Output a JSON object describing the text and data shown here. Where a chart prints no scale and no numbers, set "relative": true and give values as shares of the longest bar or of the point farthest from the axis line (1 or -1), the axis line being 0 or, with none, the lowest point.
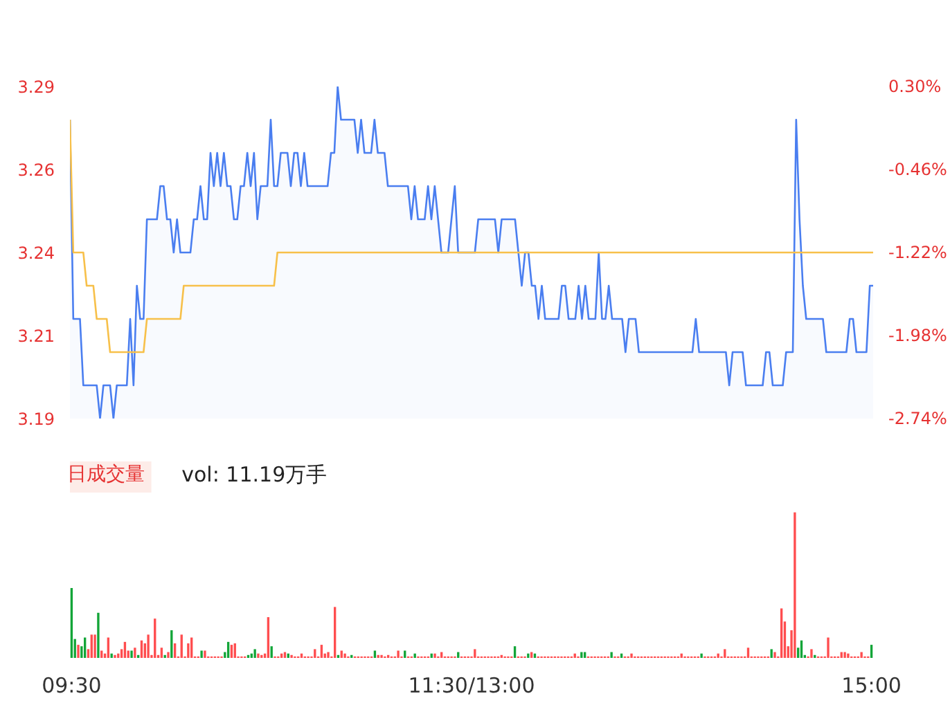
{
  "chart_data": [
    {
      "type": "line",
      "tick_labels": "y",
      "ylim": [
        3.19,
        3.29
      ],
      "categories": [
        null,
        null,
        null,
        null,
        null,
        null,
        null,
        null,
        null,
        null,
        null,
        null,
        null,
        null,
        null,
        null,
        null,
        null,
        null,
        null,
        null,
        null,
        null,
        null,
        null,
        null,
        null,
        null,
        null,
        null,
        null,
        null,
        null,
        null,
        null,
        null,
        null,
        null,
        null,
        null,
        null,
        null,
        null,
        null,
        null,
        null,
        null,
        null,
        null,
        null,
        null,
        null,
        null,
        null,
        null,
        null,
        null,
        null,
        null,
        null,
        null,
        null,
        null,
        null,
        null,
        null,
        null,
        null,
        null,
        null,
        null,
        null,
        null,
        null,
        null,
        null,
        null,
        null,
        null,
        null,
        null,
        null,
        null,
        null,
        null,
        null,
        null,
        null,
        null,
        null,
        null,
        null,
        null,
        null,
        null,
        null,
        null,
        null,
        null,
        null,
        null,
        null,
        null,
        null,
        null,
        null,
        null,
        null,
        null,
        null,
        null,
        null,
        null,
        null,
        null,
        null,
        null,
        null,
        null,
        null,
        null,
        null,
        null,
        null,
        null,
        null,
        null,
        null,
        null,
        null,
        null,
        null,
        null,
        null,
        null,
        null,
        null,
        null,
        null,
        null,
        null,
        null,
        null,
        null,
        null,
        null,
        null,
        null,
        null,
        null,
        null,
        null,
        null,
        null,
        null,
        null,
        null,
        null,
        null,
        null,
        null,
        null,
        null,
        null,
        null,
        null,
        null,
        null,
        null,
        null,
        null,
        null,
        null,
        null,
        null,
        null,
        null,
        null,
        null,
        null,
        null,
        null,
        null,
        null,
        null,
        null,
        null,
        null,
        null,
        null,
        null,
        null,
        null,
        null,
        null,
        null,
        null,
        null,
        null,
        null,
        null,
        null,
        null,
        null,
        null,
        null,
        null,
        null,
        null,
        null,
        null,
        null,
        null,
        null,
        null,
        null,
        null,
        null,
        null,
        null,
        null,
        null,
        null,
        null,
        null,
        null,
        null,
        null,
        null,
        null,
        null,
        null,
        null,
        null,
        null,
        null,
        null,
        null,
        null,
        null,
        null
      ],
      "yticks": [
        {
          "value": 3.29,
          "label": "3.29"
        },
        {
          "value": 3.265,
          "label": "3.26"
        },
        {
          "value": 3.24,
          "label": "3.24"
        },
        {
          "value": 3.215,
          "label": "3.21"
        },
        {
          "value": 3.19,
          "label": "3.19"
        }
      ],
      "y2lim": [
        -2.74,
        0.3
      ],
      "y2ticks": [
        {
          "value": 0.3,
          "label": "0.30%"
        },
        {
          "value": -0.46,
          "label": "-0.46%"
        },
        {
          "value": -1.22,
          "label": "-1.22%"
        },
        {
          "value": -1.98,
          "label": "-1.98%"
        },
        {
          "value": -2.74,
          "label": "-2.74%"
        }
      ],
      "series": [
        {
          "type": "area",
          "color": "#4a7ef0",
          "values": [
            3.28,
            3.22,
            3.22,
            3.22,
            3.2,
            3.2,
            3.2,
            3.2,
            3.2,
            3.19,
            3.2,
            3.2,
            3.2,
            3.19,
            3.2,
            3.2,
            3.2,
            3.2,
            3.22,
            3.2,
            3.23,
            3.22,
            3.22,
            3.25,
            3.25,
            3.25,
            3.25,
            3.26,
            3.26,
            3.25,
            3.25,
            3.24,
            3.25,
            3.24,
            3.24,
            3.24,
            3.24,
            3.25,
            3.25,
            3.26,
            3.25,
            3.25,
            3.27,
            3.26,
            3.27,
            3.26,
            3.27,
            3.26,
            3.26,
            3.25,
            3.25,
            3.26,
            3.26,
            3.27,
            3.26,
            3.27,
            3.25,
            3.26,
            3.26,
            3.26,
            3.28,
            3.26,
            3.26,
            3.27,
            3.27,
            3.27,
            3.26,
            3.27,
            3.27,
            3.26,
            3.27,
            3.26,
            3.26,
            3.26,
            3.26,
            3.26,
            3.26,
            3.26,
            3.27,
            3.27,
            3.29,
            3.28,
            3.28,
            3.28,
            3.28,
            3.28,
            3.27,
            3.28,
            3.27,
            3.27,
            3.27,
            3.28,
            3.27,
            3.27,
            3.27,
            3.26,
            3.26,
            3.26,
            3.26,
            3.26,
            3.26,
            3.26,
            3.25,
            3.26,
            3.25,
            3.25,
            3.25,
            3.26,
            3.25,
            3.26,
            3.25,
            3.24,
            3.24,
            3.24,
            3.25,
            3.26,
            3.24,
            3.24,
            3.24,
            3.24,
            3.24,
            3.24,
            3.25,
            3.25,
            3.25,
            3.25,
            3.25,
            3.25,
            3.24,
            3.25,
            3.25,
            3.25,
            3.25,
            3.25,
            3.24,
            3.23,
            3.24,
            3.24,
            3.23,
            3.23,
            3.22,
            3.23,
            3.22,
            3.22,
            3.22,
            3.22,
            3.22,
            3.23,
            3.23,
            3.22,
            3.22,
            3.22,
            3.23,
            3.22,
            3.23,
            3.22,
            3.22,
            3.22,
            3.24,
            3.22,
            3.22,
            3.23,
            3.22,
            3.22,
            3.22,
            3.22,
            3.21,
            3.22,
            3.22,
            3.22,
            3.21,
            3.21,
            3.21,
            3.21,
            3.21,
            3.21,
            3.21,
            3.21,
            3.21,
            3.21,
            3.21,
            3.21,
            3.21,
            3.21,
            3.21,
            3.21,
            3.21,
            3.22,
            3.21,
            3.21,
            3.21,
            3.21,
            3.21,
            3.21,
            3.21,
            3.21,
            3.21,
            3.2,
            3.21,
            3.21,
            3.21,
            3.21,
            3.2,
            3.2,
            3.2,
            3.2,
            3.2,
            3.2,
            3.21,
            3.21,
            3.2,
            3.2,
            3.2,
            3.2,
            3.21,
            3.21,
            3.21,
            3.28,
            3.25,
            3.23,
            3.22,
            3.22,
            3.22,
            3.22,
            3.22,
            3.22,
            3.21,
            3.21,
            3.21,
            3.21,
            3.21,
            3.21,
            3.21,
            3.22,
            3.22,
            3.21,
            3.21,
            3.21,
            3.21,
            3.23,
            3.23
          ]
        },
        {
          "type": "line",
          "color": "#f7c04a",
          "values": [
            3.28,
            3.24,
            3.24,
            3.24,
            3.24,
            3.23,
            3.23,
            3.23,
            3.22,
            3.22,
            3.22,
            3.22,
            3.21,
            3.21,
            3.21,
            3.21,
            3.21,
            3.21,
            3.21,
            3.21,
            3.21,
            3.21,
            3.21,
            3.22,
            3.22,
            3.22,
            3.22,
            3.22,
            3.22,
            3.22,
            3.22,
            3.22,
            3.22,
            3.22,
            3.23,
            3.23,
            3.23,
            3.23,
            3.23,
            3.23,
            3.23,
            3.23,
            3.23,
            3.23,
            3.23,
            3.23,
            3.23,
            3.23,
            3.23,
            3.23,
            3.23,
            3.23,
            3.23,
            3.23,
            3.23,
            3.23,
            3.23,
            3.23,
            3.23,
            3.23,
            3.23,
            3.23,
            3.24,
            3.24,
            3.24,
            3.24,
            3.24,
            3.24,
            3.24,
            3.24,
            3.24,
            3.24,
            3.24,
            3.24,
            3.24,
            3.24,
            3.24,
            3.24,
            3.24,
            3.24,
            3.24,
            3.24,
            3.24,
            3.24,
            3.24,
            3.24,
            3.24,
            3.24,
            3.24,
            3.24,
            3.24,
            3.24,
            3.24,
            3.24,
            3.24,
            3.24,
            3.24,
            3.24,
            3.24,
            3.24,
            3.24,
            3.24,
            3.24,
            3.24,
            3.24,
            3.24,
            3.24,
            3.24,
            3.24,
            3.24,
            3.24,
            3.24,
            3.24,
            3.24,
            3.24,
            3.24,
            3.24,
            3.24,
            3.24,
            3.24,
            3.24,
            3.24,
            3.24,
            3.24,
            3.24,
            3.24,
            3.24,
            3.24,
            3.24,
            3.24,
            3.24,
            3.24,
            3.24,
            3.24,
            3.24,
            3.24,
            3.24,
            3.24,
            3.24,
            3.24,
            3.24,
            3.24,
            3.24,
            3.24,
            3.24,
            3.24,
            3.24,
            3.24,
            3.24,
            3.24,
            3.24,
            3.24,
            3.24,
            3.24,
            3.24,
            3.24,
            3.24,
            3.24,
            3.24,
            3.24,
            3.24,
            3.24,
            3.24,
            3.24,
            3.24,
            3.24,
            3.24,
            3.24,
            3.24,
            3.24,
            3.24,
            3.24,
            3.24,
            3.24,
            3.24,
            3.24,
            3.24,
            3.24,
            3.24,
            3.24,
            3.24,
            3.24,
            3.24,
            3.24,
            3.24,
            3.24,
            3.24,
            3.24,
            3.24,
            3.24,
            3.24,
            3.24,
            3.24,
            3.24,
            3.24,
            3.24,
            3.24,
            3.24,
            3.24,
            3.24,
            3.24,
            3.24,
            3.24,
            3.24,
            3.24,
            3.24,
            3.24,
            3.24,
            3.24,
            3.24,
            3.24,
            3.24,
            3.24,
            3.24,
            3.24,
            3.24,
            3.24,
            3.24,
            3.24,
            3.24,
            3.24,
            3.24,
            3.24,
            3.24,
            3.24,
            3.24,
            3.24,
            3.24,
            3.24,
            3.24,
            3.24,
            3.24,
            3.24,
            3.24,
            3.24,
            3.24,
            3.24,
            3.24,
            3.24,
            3.24,
            3.24
          ]
        }
      ]
    },
    {
      "type": "bar",
      "relative": true,
      "title": "日成交量",
      "subtitle": "vol: 11.19万手",
      "categories": [
        "09:30",
        null,
        null,
        null,
        null,
        null,
        null,
        null,
        null,
        null,
        null,
        null,
        null,
        null,
        null,
        null,
        null,
        null,
        null,
        null,
        null,
        null,
        null,
        null,
        null,
        null,
        null,
        null,
        null,
        null,
        null,
        null,
        null,
        null,
        null,
        null,
        null,
        null,
        null,
        null,
        null,
        null,
        null,
        null,
        null,
        null,
        null,
        null,
        null,
        null,
        null,
        null,
        null,
        null,
        null,
        null,
        null,
        null,
        null,
        null,
        null,
        null,
        null,
        null,
        null,
        null,
        null,
        null,
        null,
        null,
        null,
        null,
        null,
        null,
        null,
        null,
        null,
        null,
        null,
        null,
        null,
        null,
        null,
        null,
        null,
        null,
        null,
        null,
        null,
        null,
        null,
        null,
        null,
        null,
        null,
        null,
        null,
        null,
        null,
        null,
        null,
        null,
        null,
        null,
        null,
        null,
        null,
        null,
        null,
        null,
        null,
        null,
        null,
        null,
        null,
        null,
        null,
        null,
        null,
        null,
        "11:30/13:00",
        null,
        null,
        null,
        null,
        null,
        null,
        null,
        null,
        null,
        null,
        null,
        null,
        null,
        null,
        null,
        null,
        null,
        null,
        null,
        null,
        null,
        null,
        null,
        null,
        null,
        null,
        null,
        null,
        null,
        null,
        null,
        null,
        null,
        null,
        null,
        null,
        null,
        null,
        null,
        null,
        null,
        null,
        null,
        null,
        null,
        null,
        null,
        null,
        null,
        null,
        null,
        null,
        null,
        null,
        null,
        null,
        null,
        null,
        null,
        null,
        null,
        null,
        null,
        null,
        null,
        null,
        null,
        null,
        null,
        null,
        null,
        null,
        null,
        null,
        null,
        null,
        null,
        null,
        null,
        null,
        null,
        null,
        null,
        null,
        null,
        null,
        null,
        null,
        null,
        null,
        null,
        null,
        null,
        null,
        null,
        null,
        null,
        null,
        null,
        null,
        null,
        null,
        null,
        null,
        null,
        null,
        null,
        null,
        null,
        null,
        null,
        null,
        null,
        null,
        null,
        null,
        null,
        null,
        null,
        "15:00"
      ],
      "series": [
        {
          "values": [
            0.48,
            0.13,
            0.09,
            0.08,
            0.14,
            0.06,
            0.16,
            0.16,
            0.31,
            0.05,
            0.03,
            0.14,
            0.03,
            0.02,
            0.03,
            0.06,
            0.11,
            0.05,
            0.05,
            0.07,
            0.02,
            0.12,
            0.1,
            0.16,
            0.02,
            0.27,
            0.02,
            0.07,
            0.02,
            0.04,
            0.19,
            0.1,
            0.01,
            0.16,
            0.01,
            0.1,
            0.14,
            0.01,
            0.01,
            0.05,
            0.05,
            0.01,
            0.01,
            0.01,
            0.01,
            0.01,
            0.04,
            0.11,
            0.09,
            0.1,
            0.01,
            0.01,
            0.01,
            0.02,
            0.03,
            0.06,
            0.03,
            0.02,
            0.03,
            0.28,
            0.08,
            0.01,
            0.01,
            0.03,
            0.04,
            0.03,
            0.02,
            0.01,
            0.01,
            0.03,
            0.01,
            0.01,
            0.01,
            0.06,
            0.01,
            0.09,
            0.03,
            0.04,
            0.01,
            0.35,
            0.02,
            0.05,
            0.03,
            0.01,
            0.02,
            0.01,
            0.01,
            0.01,
            0.01,
            0.01,
            0.01,
            0.05,
            0.02,
            0.02,
            0.01,
            0.02,
            0.01,
            0.01,
            0.05,
            0.01,
            0.05,
            0.01,
            0.01,
            0.03,
            0.01,
            0.01,
            0.01,
            0.01,
            0.03,
            0.03,
            0.01,
            0.04,
            0.01,
            0.01,
            0.01,
            0.01,
            0.04,
            0.01,
            0.01,
            0.01,
            0.01,
            0.06,
            0.01,
            0.01,
            0.01,
            0.01,
            0.01,
            0.01,
            0.01,
            0.02,
            0.01,
            0.01,
            0.01,
            0.08,
            0.01,
            0.01,
            0.01,
            0.03,
            0.04,
            0.03,
            0.01,
            0.01,
            0.01,
            0.01,
            0.01,
            0.01,
            0.01,
            0.01,
            0.01,
            0.01,
            0.01,
            0.03,
            0.01,
            0.04,
            0.04,
            0.01,
            0.01,
            0.01,
            0.01,
            0.01,
            0.01,
            0.01,
            0.04,
            0.01,
            0.01,
            0.03,
            0.01,
            0.01,
            0.03,
            0.01,
            0.01,
            0.01,
            0.01,
            0.01,
            0.01,
            0.01,
            0.01,
            0.01,
            0.01,
            0.01,
            0.01,
            0.01,
            0.01,
            0.03,
            0.01,
            0.01,
            0.01,
            0.01,
            0.01,
            0.03,
            0.01,
            0.01,
            0.01,
            0.01,
            0.03,
            0.01,
            0.06,
            0.01,
            0.01,
            0.01,
            0.01,
            0.01,
            0.01,
            0.07,
            0.01,
            0.01,
            0.01,
            0.01,
            0.01,
            0.01,
            0.06,
            0.04,
            0.01,
            0.34,
            0.25,
            0.08,
            0.19,
            1.0,
            0.07,
            0.12,
            0.02,
            0.01,
            0.06,
            0.02,
            0.01,
            0.01,
            0.01,
            0.14,
            0.01,
            0.01,
            0.01,
            0.04,
            0.04,
            0.03,
            0.01,
            0.01,
            0.01,
            0.04,
            0.01,
            0.01,
            0.09
          ],
          "colors": [
            "#13a538",
            "#13a538",
            "#ff4d4f",
            "#13a538",
            "#13a538",
            "#ff4d4f",
            "#ff4d4f",
            "#ff4d4f",
            "#13a538",
            "#ff4d4f",
            "#ff4d4f",
            "#ff4d4f",
            "#13a538",
            "#ff4d4f",
            "#ff4d4f",
            "#ff4d4f",
            "#ff4d4f",
            "#ff4d4f",
            "#13a538",
            "#ff4d4f",
            "#13a538",
            "#ff4d4f",
            "#ff4d4f",
            "#ff4d4f",
            "#ff4d4f",
            "#ff4d4f",
            "#ff4d4f",
            "#ff4d4f",
            "#13a538",
            "#ff4d4f",
            "#13a538",
            "#ff4d4f",
            "#ff4d4f",
            "#ff4d4f",
            "#ff4d4f",
            "#ff4d4f",
            "#ff4d4f",
            "#ff4d4f",
            "#ff4d4f",
            "#13a538",
            "#ff4d4f",
            "#ff4d4f",
            "#ff4d4f",
            "#ff4d4f",
            "#ff4d4f",
            "#ff4d4f",
            "#13a538",
            "#13a538",
            "#ff4d4f",
            "#ff4d4f",
            "#ff4d4f",
            "#ff4d4f",
            "#ff4d4f",
            "#13a538",
            "#13a538",
            "#13a538",
            "#ff4d4f",
            "#ff4d4f",
            "#ff4d4f",
            "#ff4d4f",
            "#13a538",
            "#ff4d4f",
            "#ff4d4f",
            "#ff4d4f",
            "#ff4d4f",
            "#13a538",
            "#ff4d4f",
            "#ff4d4f",
            "#ff4d4f",
            "#ff4d4f",
            "#ff4d4f",
            "#ff4d4f",
            "#ff4d4f",
            "#ff4d4f",
            "#ff4d4f",
            "#ff4d4f",
            "#ff4d4f",
            "#ff4d4f",
            "#ff4d4f",
            "#ff4d4f",
            "#13a538",
            "#ff4d4f",
            "#ff4d4f",
            "#ff4d4f",
            "#13a538",
            "#ff4d4f",
            "#ff4d4f",
            "#ff4d4f",
            "#ff4d4f",
            "#ff4d4f",
            "#ff4d4f",
            "#13a538",
            "#ff4d4f",
            "#ff4d4f",
            "#ff4d4f",
            "#ff4d4f",
            "#ff4d4f",
            "#ff4d4f",
            "#ff4d4f",
            "#ff4d4f",
            "#13a538",
            "#ff4d4f",
            "#ff4d4f",
            "#13a538",
            "#ff4d4f",
            "#ff4d4f",
            "#ff4d4f",
            "#ff4d4f",
            "#13a538",
            "#ff4d4f",
            "#ff4d4f",
            "#ff4d4f",
            "#ff4d4f",
            "#ff4d4f",
            "#ff4d4f",
            "#ff4d4f",
            "#13a538",
            "#ff4d4f",
            "#ff4d4f",
            "#ff4d4f",
            "#ff4d4f",
            "#ff4d4f",
            "#ff4d4f",
            "#ff4d4f",
            "#ff4d4f",
            "#ff4d4f",
            "#ff4d4f",
            "#ff4d4f",
            "#ff4d4f",
            "#ff4d4f",
            "#ff4d4f",
            "#ff4d4f",
            "#ff4d4f",
            "#13a538",
            "#ff4d4f",
            "#ff4d4f",
            "#ff4d4f",
            "#13a538",
            "#ff4d4f",
            "#13a538",
            "#ff4d4f",
            "#ff4d4f",
            "#ff4d4f",
            "#ff4d4f",
            "#ff4d4f",
            "#ff4d4f",
            "#ff4d4f",
            "#ff4d4f",
            "#ff4d4f",
            "#ff4d4f",
            "#ff4d4f",
            "#ff4d4f",
            "#ff4d4f",
            "#13a538",
            "#13a538",
            "#ff4d4f",
            "#ff4d4f",
            "#ff4d4f",
            "#ff4d4f",
            "#ff4d4f",
            "#ff4d4f",
            "#ff4d4f",
            "#13a538",
            "#ff4d4f",
            "#ff4d4f",
            "#13a538",
            "#ff4d4f",
            "#ff4d4f",
            "#ff4d4f",
            "#ff4d4f",
            "#ff4d4f",
            "#ff4d4f",
            "#ff4d4f",
            "#ff4d4f",
            "#ff4d4f",
            "#ff4d4f",
            "#ff4d4f",
            "#ff4d4f",
            "#ff4d4f",
            "#ff4d4f",
            "#ff4d4f",
            "#ff4d4f",
            "#ff4d4f",
            "#ff4d4f",
            "#ff4d4f",
            "#ff4d4f",
            "#ff4d4f",
            "#ff4d4f",
            "#ff4d4f",
            "#13a538",
            "#ff4d4f",
            "#ff4d4f",
            "#ff4d4f",
            "#ff4d4f",
            "#ff4d4f",
            "#ff4d4f",
            "#ff4d4f",
            "#ff4d4f",
            "#ff4d4f",
            "#ff4d4f",
            "#ff4d4f",
            "#ff4d4f",
            "#ff4d4f",
            "#ff4d4f",
            "#ff4d4f",
            "#ff4d4f",
            "#ff4d4f",
            "#ff4d4f",
            "#ff4d4f",
            "#ff4d4f",
            "#13a538",
            "#ff4d4f",
            "#ff4d4f",
            "#ff4d4f",
            "#ff4d4f",
            "#ff4d4f",
            "#ff4d4f",
            "#ff4d4f",
            "#13a538",
            "#13a538",
            "#13a538",
            "#ff4d4f",
            "#ff4d4f",
            "#13a538",
            "#ff4d4f",
            "#ff4d4f",
            "#ff4d4f",
            "#ff4d4f",
            "#ff4d4f",
            "#ff4d4f",
            "#ff4d4f",
            "#ff4d4f",
            "#ff4d4f",
            "#ff4d4f",
            "#ff4d4f",
            "#ff4d4f",
            "#ff4d4f",
            "#ff4d4f",
            "#ff4d4f",
            "#ff4d4f",
            "#13a538"
          ]
        }
      ]
    }
  ]
}
